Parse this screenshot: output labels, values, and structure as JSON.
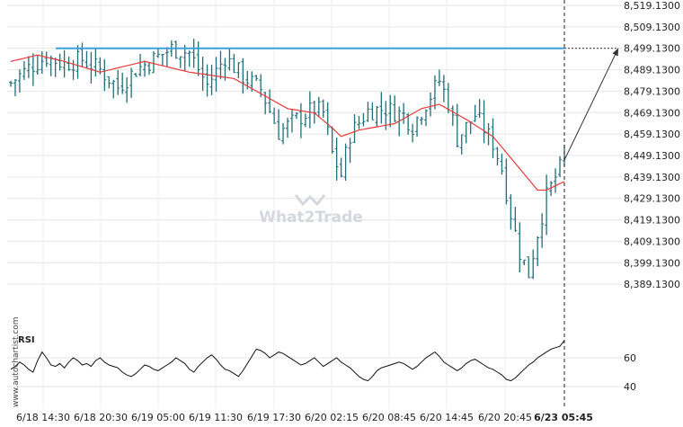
{
  "chart_data": [
    {
      "type": "candlestick",
      "price_axis": {
        "ylim": [
          8379.13,
          8519.13
        ],
        "ticks": [
          "8,519.1300",
          "8,509.1300",
          "8,499.1300",
          "8,489.1300",
          "8,479.1300",
          "8,469.1300",
          "8,459.1300",
          "8,449.1300",
          "8,439.1300",
          "8,429.1300",
          "8,419.1300",
          "8,409.1300",
          "8,399.1300",
          "8,389.1300"
        ]
      },
      "x_ticks": [
        "6/18 14:30",
        "6/18 20:30",
        "6/19 05:00",
        "6/19 11:30",
        "6/19 17:30",
        "6/20 02:15",
        "6/20 08:45",
        "6/20 14:45",
        "6/20 20:45",
        "6/23 05:45"
      ],
      "bar_count": 125,
      "resistance_level": 8499.13,
      "projection_target": 8499.13,
      "last_close": 8447.0,
      "price_anchors": [
        [
          0,
          8483
        ],
        [
          4,
          8490
        ],
        [
          8,
          8495
        ],
        [
          12,
          8492
        ],
        [
          16,
          8494
        ],
        [
          20,
          8489
        ],
        [
          24,
          8481
        ],
        [
          28,
          8489
        ],
        [
          32,
          8494
        ],
        [
          36,
          8499
        ],
        [
          40,
          8497
        ],
        [
          44,
          8482
        ],
        [
          48,
          8495
        ],
        [
          52,
          8486
        ],
        [
          56,
          8480
        ],
        [
          60,
          8460
        ],
        [
          64,
          8466
        ],
        [
          68,
          8471
        ],
        [
          70,
          8469
        ],
        [
          72,
          8450
        ],
        [
          74,
          8440
        ],
        [
          76,
          8459
        ],
        [
          80,
          8470
        ],
        [
          84,
          8471
        ],
        [
          88,
          8468
        ],
        [
          90,
          8463
        ],
        [
          92,
          8470
        ],
        [
          96,
          8484
        ],
        [
          98,
          8474
        ],
        [
          100,
          8457
        ],
        [
          104,
          8468
        ],
        [
          108,
          8455
        ],
        [
          110,
          8443
        ],
        [
          112,
          8422
        ],
        [
          114,
          8404
        ],
        [
          116,
          8394
        ],
        [
          118,
          8413
        ],
        [
          120,
          8430
        ],
        [
          122,
          8439
        ],
        [
          124,
          8447
        ]
      ],
      "ma_anchors": [
        [
          0,
          8493
        ],
        [
          6,
          8496
        ],
        [
          12,
          8493
        ],
        [
          20,
          8488
        ],
        [
          30,
          8493
        ],
        [
          40,
          8488
        ],
        [
          50,
          8485
        ],
        [
          56,
          8478
        ],
        [
          62,
          8471
        ],
        [
          68,
          8469
        ],
        [
          72,
          8462
        ],
        [
          74,
          8458
        ],
        [
          78,
          8461
        ],
        [
          86,
          8464
        ],
        [
          92,
          8471
        ],
        [
          96,
          8473
        ],
        [
          102,
          8466
        ],
        [
          108,
          8458
        ],
        [
          112,
          8448
        ],
        [
          116,
          8438
        ],
        [
          118,
          8433
        ],
        [
          120,
          8433
        ],
        [
          124,
          8437
        ]
      ]
    },
    {
      "type": "line",
      "label": "RSI",
      "ticks": [
        "60",
        "40"
      ],
      "ylim": [
        30,
        78
      ],
      "values": [
        52,
        54,
        57,
        55,
        52,
        50,
        58,
        64,
        60,
        55,
        54,
        56,
        53,
        57,
        60,
        58,
        55,
        56,
        54,
        58,
        60,
        57,
        55,
        54,
        53,
        50,
        48,
        47,
        49,
        52,
        55,
        54,
        52,
        51,
        53,
        55,
        57,
        60,
        58,
        56,
        52,
        50,
        54,
        57,
        60,
        62,
        59,
        55,
        52,
        51,
        49,
        47,
        51,
        56,
        61,
        66,
        65,
        63,
        60,
        62,
        64,
        63,
        61,
        59,
        57,
        55,
        56,
        58,
        60,
        57,
        54,
        56,
        58,
        60,
        57,
        55,
        53,
        50,
        47,
        45,
        44,
        47,
        51,
        53,
        54,
        55,
        56,
        57,
        56,
        54,
        52,
        54,
        57,
        60,
        62,
        64,
        61,
        57,
        55,
        53,
        51,
        53,
        56,
        58,
        59,
        57,
        55,
        53,
        52,
        50,
        48,
        45,
        44,
        46,
        49,
        52,
        55,
        57,
        60,
        62,
        64,
        66,
        67,
        68,
        72
      ]
    }
  ],
  "watermark": "What2Trade",
  "credit": "www.autochartist.com",
  "rsi_label": "RSI"
}
